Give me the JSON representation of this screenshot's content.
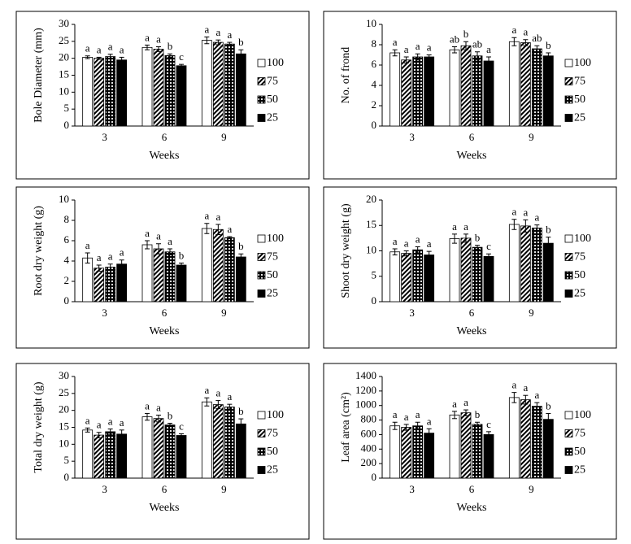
{
  "chart_data": [
    {
      "type": "bar",
      "y_label": "Bole Diameter (mm)",
      "x_label": "Weeks",
      "categories": [
        "3",
        "6",
        "9"
      ],
      "ylim": [
        0,
        30
      ],
      "yticks": [
        0,
        5,
        10,
        15,
        20,
        25,
        30
      ],
      "series": [
        {
          "name": "100",
          "color": "#ffffff",
          "pattern": "none",
          "values": [
            20.3,
            23.2,
            25.3
          ],
          "errors": [
            0.4,
            0.7,
            1.0
          ],
          "letters": [
            "a",
            "a",
            "a"
          ]
        },
        {
          "name": "75",
          "color": "#000000",
          "pattern": "diagonal",
          "values": [
            20.0,
            22.7,
            24.7
          ],
          "errors": [
            0.3,
            0.7,
            0.7
          ],
          "letters": [
            "a",
            "a",
            "a"
          ]
        },
        {
          "name": "50",
          "color": "#000000",
          "pattern": "dots",
          "values": [
            20.5,
            20.8,
            24.2
          ],
          "errors": [
            0.7,
            0.5,
            0.5
          ],
          "letters": [
            "a",
            "b",
            "a"
          ]
        },
        {
          "name": "25",
          "color": "#000000",
          "pattern": "solid",
          "values": [
            19.5,
            17.8,
            21.3
          ],
          "errors": [
            0.8,
            0.4,
            1.2
          ],
          "letters": [
            "a",
            "c",
            "b"
          ]
        }
      ]
    },
    {
      "type": "bar",
      "y_label": "No. of frond",
      "x_label": "Weeks",
      "categories": [
        "3",
        "6",
        "9"
      ],
      "ylim": [
        0,
        10
      ],
      "yticks": [
        0,
        2,
        4,
        6,
        8,
        10
      ],
      "series": [
        {
          "name": "100",
          "color": "#ffffff",
          "pattern": "none",
          "values": [
            7.2,
            7.5,
            8.3
          ],
          "errors": [
            0.3,
            0.3,
            0.4
          ],
          "letters": [
            "a",
            "ab",
            "a"
          ]
        },
        {
          "name": "75",
          "color": "#000000",
          "pattern": "diagonal",
          "values": [
            6.5,
            7.9,
            8.2
          ],
          "errors": [
            0.3,
            0.4,
            0.3
          ],
          "letters": [
            "a",
            "b",
            "a"
          ]
        },
        {
          "name": "50",
          "color": "#000000",
          "pattern": "dots",
          "values": [
            6.8,
            6.9,
            7.6
          ],
          "errors": [
            0.3,
            0.4,
            0.3
          ],
          "letters": [
            "a",
            "ab",
            "ab"
          ]
        },
        {
          "name": "25",
          "color": "#000000",
          "pattern": "solid",
          "values": [
            6.8,
            6.4,
            6.9
          ],
          "errors": [
            0.2,
            0.4,
            0.3
          ],
          "letters": [
            "a",
            "a",
            "b"
          ]
        }
      ]
    },
    {
      "type": "bar",
      "y_label": "Root dry weight (g)",
      "x_label": "Weeks",
      "categories": [
        "3",
        "6",
        "9"
      ],
      "ylim": [
        0,
        10
      ],
      "yticks": [
        0,
        2,
        4,
        6,
        8,
        10
      ],
      "series": [
        {
          "name": "100",
          "color": "#ffffff",
          "pattern": "none",
          "values": [
            4.3,
            5.6,
            7.2
          ],
          "errors": [
            0.5,
            0.4,
            0.5
          ],
          "letters": [
            "a",
            "a",
            "a"
          ]
        },
        {
          "name": "75",
          "color": "#000000",
          "pattern": "diagonal",
          "values": [
            3.3,
            5.2,
            7.1
          ],
          "errors": [
            0.3,
            0.5,
            0.5
          ],
          "letters": [
            "a",
            "a",
            "a"
          ]
        },
        {
          "name": "50",
          "color": "#000000",
          "pattern": "dots",
          "values": [
            3.4,
            4.9,
            6.3
          ],
          "errors": [
            0.3,
            0.3,
            0.1
          ],
          "letters": [
            "a",
            "a",
            "a"
          ]
        },
        {
          "name": "25",
          "color": "#000000",
          "pattern": "solid",
          "values": [
            3.7,
            3.6,
            4.4
          ],
          "errors": [
            0.4,
            0.2,
            0.3
          ],
          "letters": [
            "a",
            "b",
            "b"
          ]
        }
      ]
    },
    {
      "type": "bar",
      "y_label": "Shoot dry weight (g)",
      "x_label": "Weeks",
      "categories": [
        "3",
        "6",
        "9"
      ],
      "ylim": [
        0,
        20
      ],
      "yticks": [
        0,
        5,
        10,
        15,
        20
      ],
      "series": [
        {
          "name": "100",
          "color": "#ffffff",
          "pattern": "none",
          "values": [
            9.8,
            12.4,
            15.2
          ],
          "errors": [
            0.6,
            0.9,
            1.0
          ],
          "letters": [
            "a",
            "a",
            "a"
          ]
        },
        {
          "name": "75",
          "color": "#000000",
          "pattern": "diagonal",
          "values": [
            9.5,
            12.5,
            14.9
          ],
          "errors": [
            0.5,
            0.8,
            1.2
          ],
          "letters": [
            "a",
            "a",
            "a"
          ]
        },
        {
          "name": "50",
          "color": "#000000",
          "pattern": "dots",
          "values": [
            10.2,
            10.7,
            14.5
          ],
          "errors": [
            0.6,
            0.4,
            0.6
          ],
          "letters": [
            "a",
            "b",
            "a"
          ]
        },
        {
          "name": "25",
          "color": "#000000",
          "pattern": "solid",
          "values": [
            9.2,
            8.9,
            11.5
          ],
          "errors": [
            0.7,
            0.5,
            1.2
          ],
          "letters": [
            "a",
            "c",
            "b"
          ]
        }
      ]
    },
    {
      "type": "bar",
      "y_label": "Total dry weight (g)",
      "x_label": "Weeks",
      "categories": [
        "3",
        "6",
        "9"
      ],
      "ylim": [
        0,
        30
      ],
      "yticks": [
        0,
        5,
        10,
        15,
        20,
        25,
        30
      ],
      "series": [
        {
          "name": "100",
          "color": "#ffffff",
          "pattern": "none",
          "values": [
            14.2,
            18.1,
            22.5
          ],
          "errors": [
            0.6,
            1.0,
            1.2
          ],
          "letters": [
            "a",
            "a",
            "a"
          ]
        },
        {
          "name": "75",
          "color": "#000000",
          "pattern": "diagonal",
          "values": [
            12.7,
            17.6,
            21.7
          ],
          "errors": [
            0.8,
            1.0,
            1.2
          ],
          "letters": [
            "a",
            "a",
            "a"
          ]
        },
        {
          "name": "50",
          "color": "#000000",
          "pattern": "dots",
          "values": [
            13.7,
            15.7,
            21.0
          ],
          "errors": [
            0.8,
            0.5,
            0.8
          ],
          "letters": [
            "a",
            "b",
            "a"
          ]
        },
        {
          "name": "25",
          "color": "#000000",
          "pattern": "solid",
          "values": [
            13.0,
            12.6,
            16.0
          ],
          "errors": [
            1.2,
            0.5,
            1.5
          ],
          "letters": [
            "a",
            "c",
            "b"
          ]
        }
      ]
    },
    {
      "type": "bar",
      "y_label": "Leaf area (cm²)",
      "x_label": "Weeks",
      "categories": [
        "3",
        "6",
        "9"
      ],
      "ylim": [
        0,
        1400
      ],
      "yticks": [
        0,
        200,
        400,
        600,
        800,
        1000,
        1200,
        1400
      ],
      "series": [
        {
          "name": "100",
          "color": "#ffffff",
          "pattern": "none",
          "values": [
            720,
            870,
            1110
          ],
          "errors": [
            50,
            50,
            70
          ],
          "letters": [
            "a",
            "a",
            "a"
          ]
        },
        {
          "name": "75",
          "color": "#000000",
          "pattern": "diagonal",
          "values": [
            700,
            900,
            1080
          ],
          "errors": [
            40,
            40,
            60
          ],
          "letters": [
            "a",
            "a",
            "a"
          ]
        },
        {
          "name": "50",
          "color": "#000000",
          "pattern": "dots",
          "values": [
            720,
            740,
            990
          ],
          "errors": [
            50,
            30,
            50
          ],
          "letters": [
            "a",
            "b",
            "a"
          ]
        },
        {
          "name": "25",
          "color": "#000000",
          "pattern": "solid",
          "values": [
            620,
            600,
            810
          ],
          "errors": [
            60,
            40,
            80
          ],
          "letters": [
            "a",
            "c",
            "b"
          ]
        }
      ]
    }
  ]
}
